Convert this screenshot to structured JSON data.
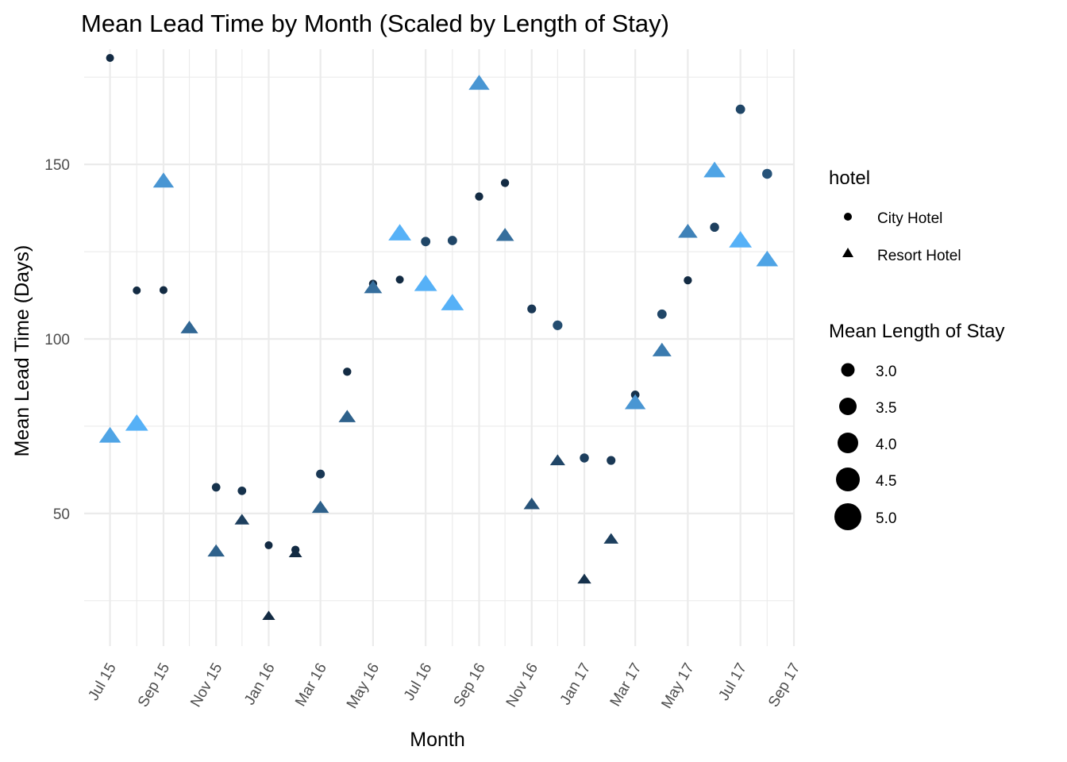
{
  "chart_data": {
    "type": "scatter",
    "title": "Mean Lead Time by Month (Scaled by Length of Stay)",
    "xlabel": "Month",
    "ylabel": "Mean Lead Time (Days)",
    "x_ticks": [
      "2015-07-01",
      "2015-09-01",
      "2015-11-01",
      "2016-01-01",
      "2016-03-01",
      "2016-05-01",
      "2016-07-01",
      "2016-09-01",
      "2016-11-01",
      "2017-01-01",
      "2017-03-01",
      "2017-05-01",
      "2017-07-01",
      "2017-09-01"
    ],
    "x_tick_labels": [
      "Jul 15",
      "Sep 15",
      "Nov 15",
      "Jan 16",
      "Mar 16",
      "May 16",
      "Jul 16",
      "Sep 16",
      "Nov 16",
      "Jan 17",
      "Mar 17",
      "May 17",
      "Jul 17",
      "Sep 17"
    ],
    "xlim": [
      "2015-06-01",
      "2017-09-01"
    ],
    "y_ticks": [
      50,
      100,
      150
    ],
    "y_tick_labels": [
      "50",
      "100",
      "150"
    ],
    "ylim": [
      12,
      183
    ],
    "grid": true,
    "legend_position": "right",
    "color_scale": {
      "low": 3.0,
      "high": 5.0,
      "low_color": "#132b43",
      "high_color": "#56b1f7"
    },
    "legend_hotel": {
      "title": "hotel",
      "entries": [
        {
          "label": "City Hotel",
          "shape": "circle"
        },
        {
          "label": "Resort Hotel",
          "shape": "triangle"
        }
      ]
    },
    "legend_size": {
      "title": "Mean Length of Stay",
      "entries": [
        {
          "label": "3.0",
          "value": 3.0
        },
        {
          "label": "3.5",
          "value": 3.5
        },
        {
          "label": "4.0",
          "value": 4.0
        },
        {
          "label": "4.5",
          "value": 4.5
        },
        {
          "label": "5.0",
          "value": 5.0
        }
      ]
    },
    "series": [
      {
        "name": "City Hotel",
        "shape": "circle",
        "points": [
          {
            "x": "2015-07-01",
            "y": 180.5,
            "stay": 2.9
          },
          {
            "x": "2015-08-01",
            "y": 113.9,
            "stay": 2.9
          },
          {
            "x": "2015-09-01",
            "y": 114.0,
            "stay": 2.9
          },
          {
            "x": "2015-11-01",
            "y": 57.5,
            "stay": 3.1
          },
          {
            "x": "2015-12-01",
            "y": 56.5,
            "stay": 3.1
          },
          {
            "x": "2016-01-01",
            "y": 40.9,
            "stay": 2.9
          },
          {
            "x": "2016-02-01",
            "y": 39.6,
            "stay": 3.0
          },
          {
            "x": "2016-03-01",
            "y": 61.3,
            "stay": 3.2
          },
          {
            "x": "2016-04-01",
            "y": 90.6,
            "stay": 3.0
          },
          {
            "x": "2016-05-01",
            "y": 115.8,
            "stay": 3.0
          },
          {
            "x": "2016-06-01",
            "y": 117.0,
            "stay": 2.9
          },
          {
            "x": "2016-07-01",
            "y": 127.9,
            "stay": 3.4
          },
          {
            "x": "2016-08-01",
            "y": 128.2,
            "stay": 3.4
          },
          {
            "x": "2016-09-01",
            "y": 140.8,
            "stay": 3.0
          },
          {
            "x": "2016-10-01",
            "y": 144.7,
            "stay": 3.0
          },
          {
            "x": "2016-11-01",
            "y": 108.6,
            "stay": 3.2
          },
          {
            "x": "2016-12-01",
            "y": 103.9,
            "stay": 3.5
          },
          {
            "x": "2017-01-01",
            "y": 65.9,
            "stay": 3.3
          },
          {
            "x": "2017-02-01",
            "y": 65.2,
            "stay": 3.2
          },
          {
            "x": "2017-03-01",
            "y": 84.0,
            "stay": 3.1
          },
          {
            "x": "2017-04-01",
            "y": 107.1,
            "stay": 3.4
          },
          {
            "x": "2017-05-01",
            "y": 116.8,
            "stay": 3.0
          },
          {
            "x": "2017-06-01",
            "y": 132.0,
            "stay": 3.3
          },
          {
            "x": "2017-07-01",
            "y": 165.8,
            "stay": 3.4
          },
          {
            "x": "2017-08-01",
            "y": 147.3,
            "stay": 3.6
          }
        ]
      },
      {
        "name": "Resort Hotel",
        "shape": "triangle",
        "points": [
          {
            "x": "2015-07-01",
            "y": 72.0,
            "stay": 4.8
          },
          {
            "x": "2015-08-01",
            "y": 75.5,
            "stay": 5.0
          },
          {
            "x": "2015-09-01",
            "y": 145.0,
            "stay": 4.6
          },
          {
            "x": "2015-10-01",
            "y": 103.0,
            "stay": 3.9
          },
          {
            "x": "2015-11-01",
            "y": 39.0,
            "stay": 3.8
          },
          {
            "x": "2015-12-01",
            "y": 48.0,
            "stay": 3.3
          },
          {
            "x": "2016-01-01",
            "y": 20.5,
            "stay": 2.9
          },
          {
            "x": "2016-02-01",
            "y": 38.5,
            "stay": 3.0
          },
          {
            "x": "2016-03-01",
            "y": 51.5,
            "stay": 3.8
          },
          {
            "x": "2016-04-01",
            "y": 77.5,
            "stay": 3.8
          },
          {
            "x": "2016-05-01",
            "y": 114.5,
            "stay": 4.0
          },
          {
            "x": "2016-06-01",
            "y": 130.0,
            "stay": 5.0
          },
          {
            "x": "2016-07-01",
            "y": 115.5,
            "stay": 5.0
          },
          {
            "x": "2016-08-01",
            "y": 110.0,
            "stay": 5.0
          },
          {
            "x": "2016-09-01",
            "y": 173.0,
            "stay": 4.6
          },
          {
            "x": "2016-10-01",
            "y": 129.5,
            "stay": 4.0
          },
          {
            "x": "2016-11-01",
            "y": 52.5,
            "stay": 3.6
          },
          {
            "x": "2016-12-01",
            "y": 65.0,
            "stay": 3.4
          },
          {
            "x": "2017-01-01",
            "y": 31.0,
            "stay": 3.1
          },
          {
            "x": "2017-02-01",
            "y": 42.5,
            "stay": 3.3
          },
          {
            "x": "2017-03-01",
            "y": 81.5,
            "stay": 4.6
          },
          {
            "x": "2017-04-01",
            "y": 96.5,
            "stay": 4.2
          },
          {
            "x": "2017-05-01",
            "y": 130.5,
            "stay": 4.3
          },
          {
            "x": "2017-06-01",
            "y": 148.0,
            "stay": 4.8
          },
          {
            "x": "2017-07-01",
            "y": 128.0,
            "stay": 5.0
          },
          {
            "x": "2017-08-01",
            "y": 122.5,
            "stay": 4.8
          }
        ]
      }
    ]
  }
}
